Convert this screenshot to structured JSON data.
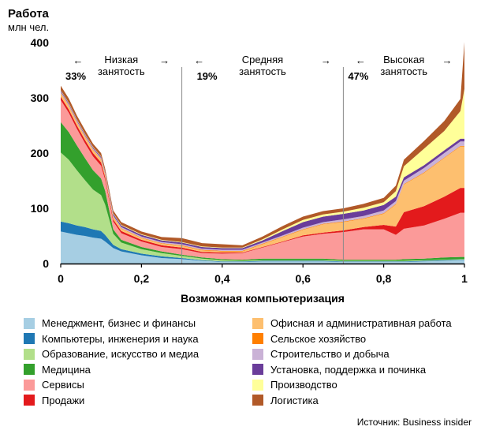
{
  "chart_data": {
    "type": "area",
    "stacked": true,
    "title": "Работа",
    "y_unit": "млн чел.",
    "xlabel": "Возможная компьютеризация",
    "xlim": [
      0,
      1
    ],
    "ylim": [
      0,
      400
    ],
    "x_ticks": [
      "0",
      "0,2",
      "0,4",
      "0,6",
      "0,8",
      "1"
    ],
    "y_ticks": [
      "0",
      "100",
      "200",
      "300",
      "400"
    ],
    "x": [
      0,
      0.02,
      0.04,
      0.06,
      0.08,
      0.1,
      0.11,
      0.13,
      0.15,
      0.2,
      0.25,
      0.3,
      0.35,
      0.4,
      0.45,
      0.5,
      0.55,
      0.6,
      0.65,
      0.7,
      0.75,
      0.8,
      0.83,
      0.85,
      0.9,
      0.95,
      0.99,
      1.0
    ],
    "series": [
      {
        "name": "Менеджмент, бизнес и финансы",
        "color": "#a6cee3",
        "values": [
          58,
          55,
          52,
          50,
          47,
          45,
          40,
          28,
          22,
          15,
          10,
          8,
          5,
          3,
          3,
          4,
          4,
          4,
          4,
          3,
          3,
          3,
          3,
          3,
          4,
          5,
          6,
          6
        ]
      },
      {
        "name": "Компьютеры, инженерия и наука",
        "color": "#1f78b4",
        "values": [
          18,
          18,
          17,
          16,
          15,
          14,
          12,
          6,
          4,
          3,
          3,
          2,
          1,
          1,
          1,
          1,
          1,
          1,
          1,
          1,
          1,
          1,
          1,
          1,
          1,
          1,
          1,
          1
        ]
      },
      {
        "name": "Образование, искусство и медиа",
        "color": "#b2df8a",
        "values": [
          125,
          115,
          100,
          85,
          72,
          65,
          55,
          20,
          12,
          8,
          6,
          4,
          3,
          2,
          1,
          1,
          1,
          1,
          1,
          1,
          1,
          1,
          1,
          1,
          1,
          1,
          1,
          1
        ]
      },
      {
        "name": "Медицина",
        "color": "#33a02c",
        "values": [
          55,
          50,
          45,
          40,
          35,
          30,
          25,
          8,
          5,
          4,
          3,
          2,
          2,
          2,
          2,
          3,
          3,
          3,
          3,
          2,
          2,
          2,
          2,
          3,
          3,
          4,
          4,
          4
        ]
      },
      {
        "name": "Сервисы",
        "color": "#fb9a99",
        "values": [
          40,
          35,
          30,
          27,
          25,
          23,
          20,
          14,
          12,
          10,
          8,
          10,
          8,
          10,
          12,
          20,
          30,
          40,
          45,
          50,
          55,
          55,
          45,
          55,
          60,
          70,
          80,
          80
        ]
      },
      {
        "name": "Продажи",
        "color": "#e31a1c",
        "values": [
          6,
          6,
          6,
          6,
          6,
          6,
          5,
          4,
          4,
          3,
          3,
          3,
          2,
          2,
          1,
          1,
          1,
          2,
          2,
          3,
          4,
          8,
          15,
          30,
          35,
          40,
          45,
          45
        ]
      },
      {
        "name": "Офисная и административная работа",
        "color": "#fdbf6f",
        "values": [
          6,
          6,
          5,
          5,
          5,
          5,
          4,
          4,
          4,
          3,
          3,
          3,
          3,
          2,
          2,
          5,
          8,
          10,
          15,
          15,
          15,
          20,
          40,
          50,
          60,
          70,
          75,
          75
        ]
      },
      {
        "name": "Сельское хозяйство",
        "color": "#ff7f00",
        "values": [
          1,
          1,
          1,
          1,
          1,
          1,
          1,
          1,
          1,
          1,
          1,
          1,
          1,
          1,
          1,
          1,
          1,
          1,
          1,
          1,
          1,
          1,
          1,
          1,
          1,
          1,
          1,
          1
        ]
      },
      {
        "name": "Строительство и добыча",
        "color": "#cab2d6",
        "values": [
          2,
          2,
          2,
          2,
          2,
          2,
          2,
          2,
          2,
          2,
          2,
          2,
          2,
          2,
          2,
          2,
          2,
          3,
          3,
          4,
          4,
          5,
          5,
          6,
          8,
          8,
          8,
          8
        ]
      },
      {
        "name": "Установка, поддержка и починка",
        "color": "#6a3d9a",
        "values": [
          2,
          2,
          2,
          2,
          2,
          2,
          2,
          3,
          3,
          3,
          3,
          3,
          3,
          3,
          3,
          4,
          8,
          10,
          10,
          10,
          10,
          10,
          8,
          6,
          5,
          5,
          5,
          5
        ]
      },
      {
        "name": "Производство",
        "color": "#ffff99",
        "values": [
          1,
          1,
          1,
          1,
          1,
          1,
          1,
          1,
          1,
          1,
          1,
          1,
          1,
          1,
          1,
          2,
          3,
          4,
          4,
          4,
          5,
          5,
          10,
          20,
          30,
          35,
          50,
          90
        ]
      },
      {
        "name": "Логистика",
        "color": "#b15928",
        "values": [
          8,
          8,
          7,
          7,
          6,
          6,
          5,
          5,
          5,
          5,
          5,
          7,
          6,
          6,
          4,
          5,
          6,
          6,
          6,
          6,
          7,
          8,
          10,
          12,
          14,
          18,
          22,
          85
        ]
      }
    ],
    "annotations": [
      {
        "type": "vline",
        "x": 0.3
      },
      {
        "type": "vline",
        "x": 0.7
      },
      {
        "type": "region",
        "label": "Низкая занятость",
        "pct": "33%",
        "x_from": 0,
        "x_to": 0.3
      },
      {
        "type": "region",
        "label": "Средняя занятость",
        "pct": "19%",
        "x_from": 0.3,
        "x_to": 0.7
      },
      {
        "type": "region",
        "label": "Высокая занятость",
        "pct": "47%",
        "x_from": 0.7,
        "x_to": 1
      }
    ],
    "grid": false,
    "legend_position": "bottom, two columns"
  },
  "source": "Источник: Business insider",
  "arrows": {
    "left": "←",
    "right": "→"
  }
}
